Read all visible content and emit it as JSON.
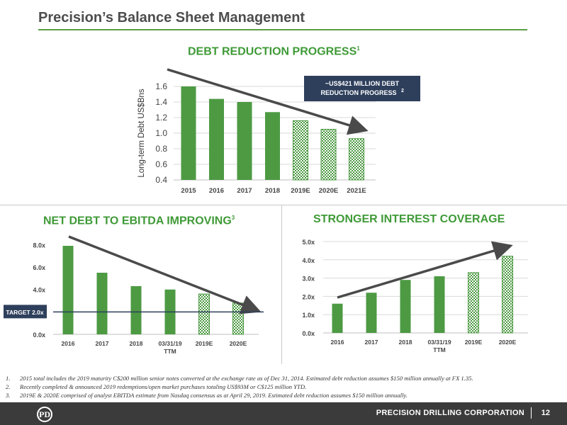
{
  "header": {
    "title": "Precision’s Balance Sheet Management"
  },
  "sections": {
    "debt": {
      "title": "DEBT REDUCTION PROGRESS",
      "sup": "1"
    },
    "leverage": {
      "title": "NET DEBT TO EBITDA IMPROVING",
      "sup": "3"
    },
    "coverage": {
      "title": "STRONGER INTEREST COVERAGE"
    }
  },
  "chart_data": [
    {
      "type": "bar",
      "ylabel": "Long-term Debt US$Bns",
      "categories": [
        "2015",
        "2016",
        "2017",
        "2018",
        "2019E",
        "2020E",
        "2021E"
      ],
      "values": [
        1.6,
        1.44,
        1.4,
        1.27,
        1.16,
        1.05,
        0.93
      ],
      "estimated": [
        false,
        false,
        false,
        false,
        true,
        true,
        true
      ],
      "ylim": [
        0.4,
        1.6
      ],
      "yticks": [
        "0.4",
        "0.6",
        "0.8",
        "1.0",
        "1.2",
        "1.4",
        "1.6"
      ],
      "grid": true,
      "callout": {
        "line1": "~US$421 MILLION DEBT",
        "line2": "REDUCTION PROGRESS",
        "sup": "2"
      }
    },
    {
      "type": "bar",
      "categories": [
        "2016",
        "2017",
        "2018",
        "03/31/19",
        "2019E",
        "2020E"
      ],
      "category_sub": [
        "",
        "",
        "",
        "TTM",
        "",
        ""
      ],
      "values": [
        7.9,
        5.5,
        4.3,
        4.0,
        3.6,
        2.8
      ],
      "estimated": [
        false,
        false,
        false,
        false,
        true,
        true
      ],
      "ylim": [
        0,
        8.6
      ],
      "yticks": [
        {
          "value": 0,
          "label": "0.0x"
        },
        {
          "value": 4,
          "label": "4.0x"
        },
        {
          "value": 6,
          "label": "6.0x"
        },
        {
          "value": 8,
          "label": "8.0x"
        }
      ],
      "target": {
        "label": "TARGET 2.0x",
        "value": 2.0
      }
    },
    {
      "type": "bar",
      "categories": [
        "2016",
        "2017",
        "2018",
        "03/31/19",
        "2019E",
        "2020E"
      ],
      "category_sub": [
        "",
        "",
        "",
        "TTM",
        "",
        ""
      ],
      "values": [
        1.6,
        2.2,
        2.9,
        3.1,
        3.3,
        4.2
      ],
      "estimated": [
        false,
        false,
        false,
        false,
        true,
        true
      ],
      "ylim": [
        0,
        5.0
      ],
      "yticks": [
        {
          "value": 0,
          "label": "0.0x"
        },
        {
          "value": 1,
          "label": "1.0x"
        },
        {
          "value": 2,
          "label": "2.0x"
        },
        {
          "value": 3,
          "label": "3.0x"
        },
        {
          "value": 4,
          "label": "4.0x"
        },
        {
          "value": 5,
          "label": "5.0x"
        }
      ],
      "grid": true
    }
  ],
  "footnotes": [
    {
      "num": "1.",
      "text": "2015 total includes the 2019 maturity C$200 million senior notes converted at the exchange rate as of Dec 31, 2014. Estimated debt reduction assumes $150 million annually at FX 1.35."
    },
    {
      "num": "2.",
      "text": "Recently completed & announced 2019 redemptions/open market purchases totaling US$93M or C$125 million YTD."
    },
    {
      "num": "3.",
      "text": "2019E & 2020E comprised of analyst EBITDA estimate from Nasdaq consensus as at April 29, 2019. Estimated debt reduction assumes $150 million annually."
    }
  ],
  "footer": {
    "company": "PRECISION DRILLING CORPORATION",
    "page": "12",
    "logo_glyph": "PD"
  },
  "colors": {
    "bar": "#4d9a43",
    "accent": "#3f9a37",
    "arrow": "#4a4a4a",
    "callout_bg": "#2e3f5c",
    "target_bg": "#2e3f5c"
  }
}
